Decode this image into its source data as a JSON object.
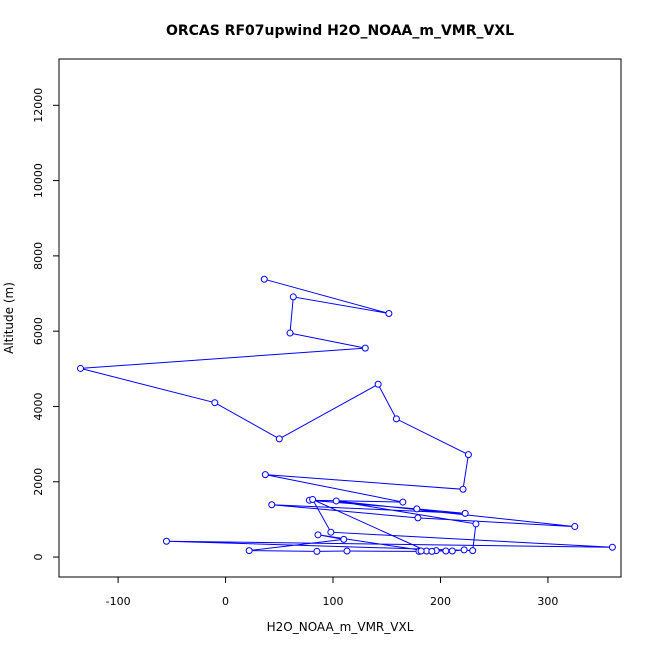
{
  "chart_data": {
    "type": "line",
    "title": "ORCAS RF07upwind H2O_NOAA_m_VMR_VXL",
    "xlabel": "H2O_NOAA_m_VMR_VXL",
    "ylabel": "Altitude (m)",
    "xlim": [
      -155,
      368
    ],
    "ylim": [
      -530,
      13230
    ],
    "xticks": [
      -100,
      0,
      100,
      200,
      300
    ],
    "yticks": [
      0,
      2000,
      4000,
      6000,
      8000,
      10000,
      12000
    ],
    "xtick_labels": [
      "-100",
      "0",
      "100",
      "200",
      "300"
    ],
    "ytick_labels": [
      "0",
      "2000",
      "4000",
      "6000",
      "8000",
      "10000",
      "12000"
    ],
    "series_color": "#0000ff",
    "marker": "open-circle",
    "grid": false,
    "legend": "none",
    "x": [
      36,
      152,
      63,
      60,
      130,
      -135,
      -10,
      50,
      142,
      159,
      226,
      221,
      37,
      165,
      78,
      178,
      223,
      43,
      179,
      325,
      103,
      233,
      230,
      -55,
      360,
      98,
      81,
      187,
      86,
      110,
      22,
      85,
      113,
      180,
      196,
      211,
      222,
      205,
      182,
      192
    ],
    "y": [
      7380,
      6470,
      6910,
      5950,
      5550,
      5010,
      4100,
      3140,
      4590,
      3670,
      2720,
      1800,
      2190,
      1460,
      1510,
      1280,
      1160,
      1390,
      1040,
      810,
      1490,
      880,
      170,
      420,
      260,
      660,
      1530,
      160,
      590,
      470,
      170,
      150,
      160,
      150,
      170,
      160,
      190,
      160,
      160,
      150
    ]
  }
}
